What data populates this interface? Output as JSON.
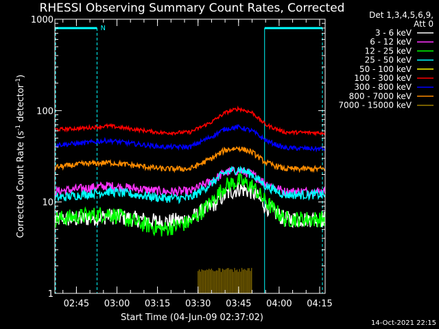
{
  "chart_data": {
    "type": "line",
    "title": "RHESSI Observing Summary Count Rates, Corrected",
    "xlabel": "Start Time (04-Jun-09 02:37:02)",
    "ylabel": "Corrected Count Rate (s⁻¹ detector⁻¹)",
    "ylabel_parts": {
      "base": "Corrected Count Rate (s",
      "sup1": "-1",
      "mid": " detector",
      "sup2": "-1",
      "end": ")"
    },
    "yscale": "log",
    "ylim": [
      1,
      1000
    ],
    "xlim_minutes": [
      0,
      100
    ],
    "x_ticks": [
      {
        "label": "02:45",
        "min": 7.97
      },
      {
        "label": "03:00",
        "min": 22.97
      },
      {
        "label": "03:15",
        "min": 37.97
      },
      {
        "label": "03:30",
        "min": 52.97
      },
      {
        "label": "03:45",
        "min": 67.97
      },
      {
        "label": "04:00",
        "min": 82.97
      },
      {
        "label": "04:15",
        "min": 97.97
      }
    ],
    "y_ticks": [
      {
        "label": "1",
        "value": 1
      },
      {
        "label": "10",
        "value": 10
      },
      {
        "label": "100",
        "value": 100
      },
      {
        "label": "1000",
        "value": 1000
      }
    ],
    "legend_header": [
      "Det 1,3,4,5,6,9,",
      "Att 0"
    ],
    "legend_position": "right",
    "series": [
      {
        "name": "3 - 6 keV",
        "color": "#ffffff",
        "x": [
          0,
          10,
          20,
          30,
          40,
          50,
          58,
          63,
          68,
          73,
          78,
          85,
          100
        ],
        "y": [
          6.5,
          6.5,
          7,
          6.5,
          6,
          6.5,
          9,
          12,
          14,
          13,
          9,
          6.5,
          6.5
        ]
      },
      {
        "name": "6 - 12 keV",
        "color": "#ff33ff",
        "x": [
          0,
          10,
          20,
          30,
          40,
          50,
          58,
          63,
          68,
          73,
          78,
          85,
          100
        ],
        "y": [
          13,
          14,
          15,
          14,
          13,
          13,
          17,
          21,
          22,
          20,
          16,
          13,
          13
        ]
      },
      {
        "name": "12 - 25 keV",
        "color": "#00ff00",
        "x": [
          0,
          10,
          20,
          30,
          40,
          50,
          58,
          63,
          68,
          73,
          78,
          85,
          100
        ],
        "y": [
          6.5,
          7,
          7.5,
          6,
          5,
          6,
          10,
          15,
          17,
          15,
          10,
          6.5,
          6.5
        ]
      },
      {
        "name": "25 - 50 keV",
        "color": "#00ffff",
        "x": [
          0,
          10,
          20,
          30,
          40,
          50,
          58,
          63,
          68,
          73,
          78,
          85,
          100
        ],
        "y": [
          11,
          12,
          13,
          12,
          11,
          11,
          16,
          21,
          23,
          20,
          15,
          12,
          12
        ]
      },
      {
        "name": "50 - 100 keV",
        "color": "#ffff00",
        "x": [
          0,
          100
        ],
        "y": [
          null,
          null
        ]
      },
      {
        "name": "100 - 300 keV",
        "color": "#ff0000",
        "x": [
          0,
          10,
          20,
          30,
          40,
          50,
          58,
          63,
          68,
          73,
          78,
          85,
          100
        ],
        "y": [
          62,
          64,
          68,
          62,
          57,
          58,
          75,
          95,
          105,
          95,
          70,
          58,
          57
        ]
      },
      {
        "name": "300 - 800 keV",
        "color": "#0000ff",
        "x": [
          0,
          10,
          20,
          30,
          40,
          50,
          58,
          63,
          68,
          73,
          78,
          85,
          100
        ],
        "y": [
          42,
          44,
          47,
          43,
          40,
          40,
          52,
          63,
          66,
          60,
          47,
          39,
          38
        ]
      },
      {
        "name": "800 - 7000 keV",
        "color": "#ff8c00",
        "x": [
          0,
          10,
          20,
          30,
          40,
          50,
          58,
          63,
          68,
          73,
          78,
          85,
          100
        ],
        "y": [
          24,
          26,
          27,
          25,
          23,
          23,
          30,
          37,
          39,
          35,
          27,
          23,
          23
        ]
      },
      {
        "name": "7000 - 15000 keV",
        "color": "#a08000",
        "x": [
          53,
          55,
          57,
          59,
          61,
          63,
          65,
          67,
          69,
          71,
          73
        ],
        "y": [
          1.9,
          1.9,
          1.9,
          1.9,
          1.9,
          1.9,
          1.9,
          1.9,
          1.9,
          1.9,
          1.9
        ]
      }
    ],
    "night_intervals_minutes": [
      [
        0,
        15.6
      ],
      [
        77.6,
        99
      ]
    ],
    "saa_marker": "N",
    "timestamp": "14-Oct-2021 22:15"
  }
}
